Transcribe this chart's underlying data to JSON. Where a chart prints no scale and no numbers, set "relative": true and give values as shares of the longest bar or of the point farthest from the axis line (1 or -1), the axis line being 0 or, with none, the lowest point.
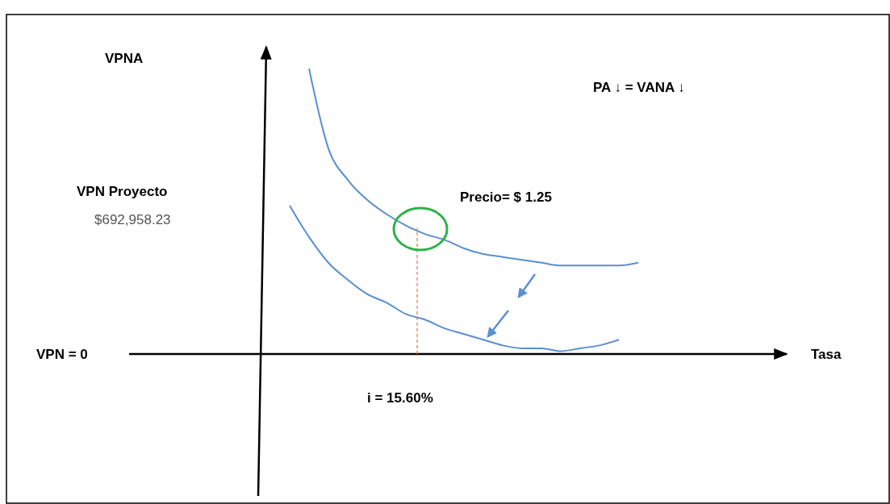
{
  "chart_data": {
    "type": "line",
    "relative": true,
    "categories": [
      null,
      null,
      null,
      null,
      null,
      null,
      null,
      null,
      null,
      null,
      null,
      null,
      null,
      null,
      null,
      null,
      null,
      null,
      null,
      null
    ],
    "series": [
      {
        "color": "#5b8fd0",
        "values": [
          null,
          null,
          1.0,
          0.72,
          0.61,
          0.54,
          0.49,
          0.45,
          0.42,
          0.4,
          0.37,
          0.35,
          0.34,
          0.33,
          0.32,
          0.31,
          0.31,
          0.31,
          0.31,
          0.32
        ]
      },
      {
        "color": "#5b8fd0",
        "values": [
          null,
          0.52,
          0.41,
          0.32,
          0.26,
          0.21,
          0.18,
          0.14,
          0.12,
          0.09,
          0.07,
          0.05,
          0.03,
          0.02,
          0.02,
          0.01,
          0.02,
          0.03,
          0.05,
          null
        ]
      }
    ],
    "annotations": [
      "Tasa",
      "VPNA",
      "VPN Proyecto",
      "$692,958.23",
      "VPN = 0",
      "Precio= $ 1.25",
      "i = 15.60%",
      "PA ↓ = VANA ↓"
    ],
    "marker": "none",
    "line_style": "solid"
  }
}
